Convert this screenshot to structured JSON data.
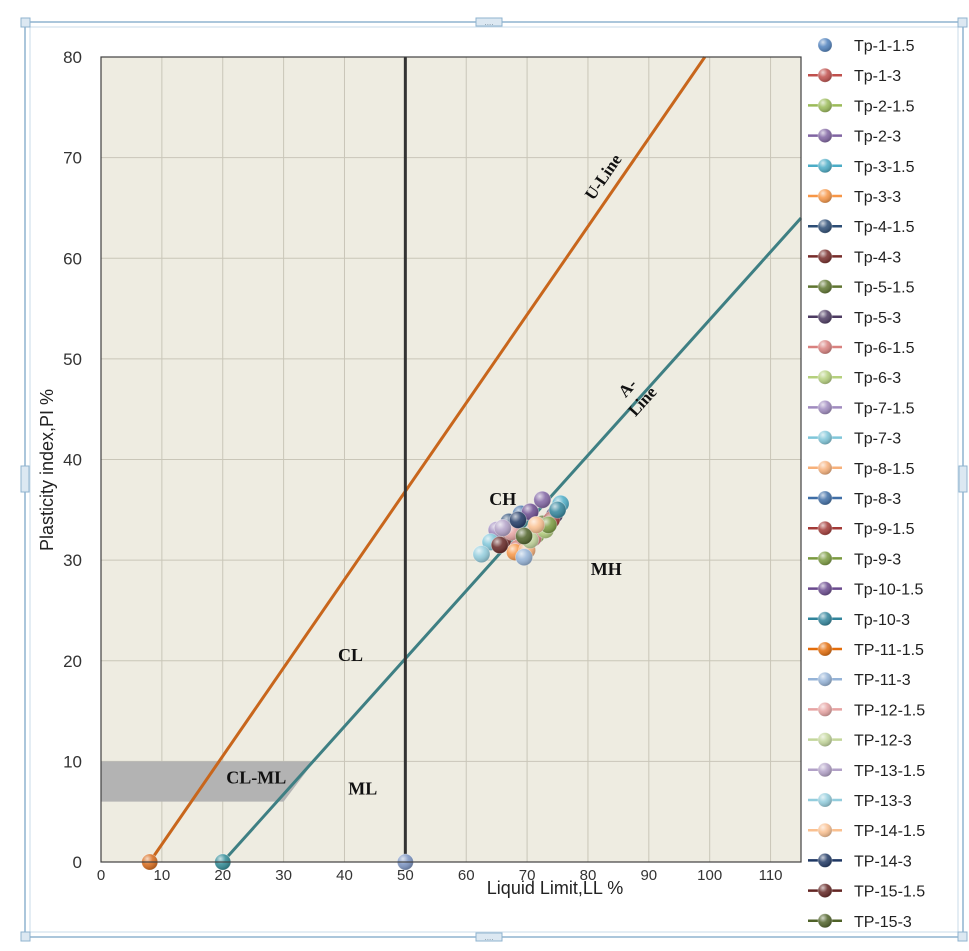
{
  "chart_data": {
    "type": "scatter",
    "title": "",
    "xlabel": "Liquid Limit,LL %",
    "ylabel": "Plasticity index,PI %",
    "xlim": [
      0,
      115
    ],
    "ylim": [
      0,
      80
    ],
    "x_ticks": [
      0,
      10,
      20,
      30,
      40,
      50,
      60,
      70,
      80,
      90,
      100,
      110
    ],
    "y_ticks": [
      0,
      10,
      20,
      30,
      40,
      50,
      60,
      70,
      80
    ],
    "grid": true,
    "legend_position": "right",
    "reference_lines": [
      {
        "name": "U-Line",
        "label_lines": [
          "U-Line"
        ],
        "color": "#c8661c",
        "x": [
          8,
          99.2
        ],
        "y": [
          0,
          80
        ]
      },
      {
        "name": "A-Line",
        "label_lines": [
          "A-",
          "Line"
        ],
        "color": "#3e7f83",
        "x": [
          20,
          115
        ],
        "y": [
          0,
          64
        ]
      },
      {
        "name": "LL=50",
        "label_lines": [],
        "color": "#333333",
        "x": [
          50,
          50
        ],
        "y": [
          0,
          80
        ]
      }
    ],
    "zones": [
      "CH",
      "CL",
      "MH",
      "CL-ML",
      "ML"
    ],
    "zone_labels": [
      {
        "text": "CH",
        "x": 66,
        "y": 35.5
      },
      {
        "text": "CL",
        "x": 41,
        "y": 20
      },
      {
        "text": "MH",
        "x": 83,
        "y": 28.5
      },
      {
        "text": "CL-ML",
        "x": 25.5,
        "y": 7.8
      },
      {
        "text": "ML",
        "x": 43,
        "y": 6.7
      }
    ],
    "cl_ml_band": {
      "x_left": 0,
      "x_right": [
        35,
        30
      ],
      "y_low": 6,
      "y_high": 10,
      "color": "#b3b3b3"
    },
    "reference_points": [
      {
        "x": 8,
        "y": 0,
        "color": "#d86a1a"
      },
      {
        "x": 20,
        "y": 0,
        "color": "#2e8a95"
      },
      {
        "x": 50,
        "y": 0,
        "color": "#7a93c2"
      }
    ],
    "series": [
      {
        "name": "Tp-1-1.5",
        "color": "#4f81bd",
        "x": [],
        "y": []
      },
      {
        "name": "Tp-1-3",
        "color": "#c0504d",
        "x": [
          68.5
        ],
        "y": [
          31.2
        ]
      },
      {
        "name": "Tp-2-1.5",
        "color": "#9bbb59",
        "x": [
          71.5
        ],
        "y": [
          32.5
        ]
      },
      {
        "name": "Tp-2-3",
        "color": "#8064a2",
        "x": [
          72.5
        ],
        "y": [
          36.0
        ]
      },
      {
        "name": "Tp-3-1.5",
        "color": "#4bacc6",
        "x": [
          75.5
        ],
        "y": [
          35.6
        ]
      },
      {
        "name": "Tp-3-3",
        "color": "#f79646",
        "x": [
          68.0
        ],
        "y": [
          30.8
        ]
      },
      {
        "name": "Tp-4-1.5",
        "color": "#2c4d75",
        "x": [
          67.0
        ],
        "y": [
          33.8
        ]
      },
      {
        "name": "Tp-4-3",
        "color": "#772c2a",
        "x": [
          66.0
        ],
        "y": [
          32.0
        ]
      },
      {
        "name": "Tp-5-1.5",
        "color": "#5f7530",
        "x": [
          72.5
        ],
        "y": [
          33.6
        ]
      },
      {
        "name": "Tp-5-3",
        "color": "#4d3b62",
        "x": [
          74.5
        ],
        "y": [
          34.5
        ]
      },
      {
        "name": "Tp-6-1.5",
        "color": "#d9817f",
        "x": [
          71.0
        ],
        "y": [
          32.2
        ]
      },
      {
        "name": "Tp-6-3",
        "color": "#b5d07d",
        "x": [
          73.0
        ],
        "y": [
          33.0
        ]
      },
      {
        "name": "Tp-7-1.5",
        "color": "#a08bbf",
        "x": [
          65.0
        ],
        "y": [
          33.0
        ]
      },
      {
        "name": "Tp-7-3",
        "color": "#7fc6d9",
        "x": [
          64.0
        ],
        "y": [
          31.8
        ]
      },
      {
        "name": "Tp-8-1.5",
        "color": "#f7b07a",
        "x": [
          70.0
        ],
        "y": [
          31.0
        ]
      },
      {
        "name": "Tp-8-3",
        "color": "#3f6ea6",
        "x": [
          69.0
        ],
        "y": [
          34.6
        ]
      },
      {
        "name": "Tp-9-1.5",
        "color": "#a33a37",
        "x": [
          74.0
        ],
        "y": [
          34.0
        ]
      },
      {
        "name": "Tp-9-3",
        "color": "#7a9a3f",
        "x": [
          73.5
        ],
        "y": [
          33.5
        ]
      },
      {
        "name": "Tp-10-1.5",
        "color": "#6a4a8e",
        "x": [
          70.5
        ],
        "y": [
          34.8
        ]
      },
      {
        "name": "Tp-10-3",
        "color": "#31849b",
        "x": [
          75.0
        ],
        "y": [
          35.0
        ]
      },
      {
        "name": "TP-11-1.5",
        "color": "#e36c0a",
        "x": [],
        "y": []
      },
      {
        "name": "TP-11-3",
        "color": "#95b3d7",
        "x": [
          69.5
        ],
        "y": [
          30.3
        ]
      },
      {
        "name": "TP-12-1.5",
        "color": "#e6a3a2",
        "x": [
          67.5
        ],
        "y": [
          32.8
        ]
      },
      {
        "name": "TP-12-3",
        "color": "#c3d69b",
        "x": [
          70.5
        ],
        "y": [
          32.0
        ]
      },
      {
        "name": "TP-13-1.5",
        "color": "#b2a1c7",
        "x": [
          66.0
        ],
        "y": [
          33.2
        ]
      },
      {
        "name": "TP-13-3",
        "color": "#93cddd",
        "x": [
          62.5
        ],
        "y": [
          30.6
        ]
      },
      {
        "name": "TP-14-1.5",
        "color": "#fac090",
        "x": [
          71.5
        ],
        "y": [
          33.5
        ]
      },
      {
        "name": "TP-14-3",
        "color": "#1f3864",
        "x": [
          68.5
        ],
        "y": [
          34.0
        ]
      },
      {
        "name": "TP-15-1.5",
        "color": "#632523",
        "x": [
          65.5
        ],
        "y": [
          31.5
        ]
      },
      {
        "name": "TP-15-3",
        "color": "#4f6228",
        "x": [
          69.5
        ],
        "y": [
          32.4
        ]
      }
    ]
  }
}
